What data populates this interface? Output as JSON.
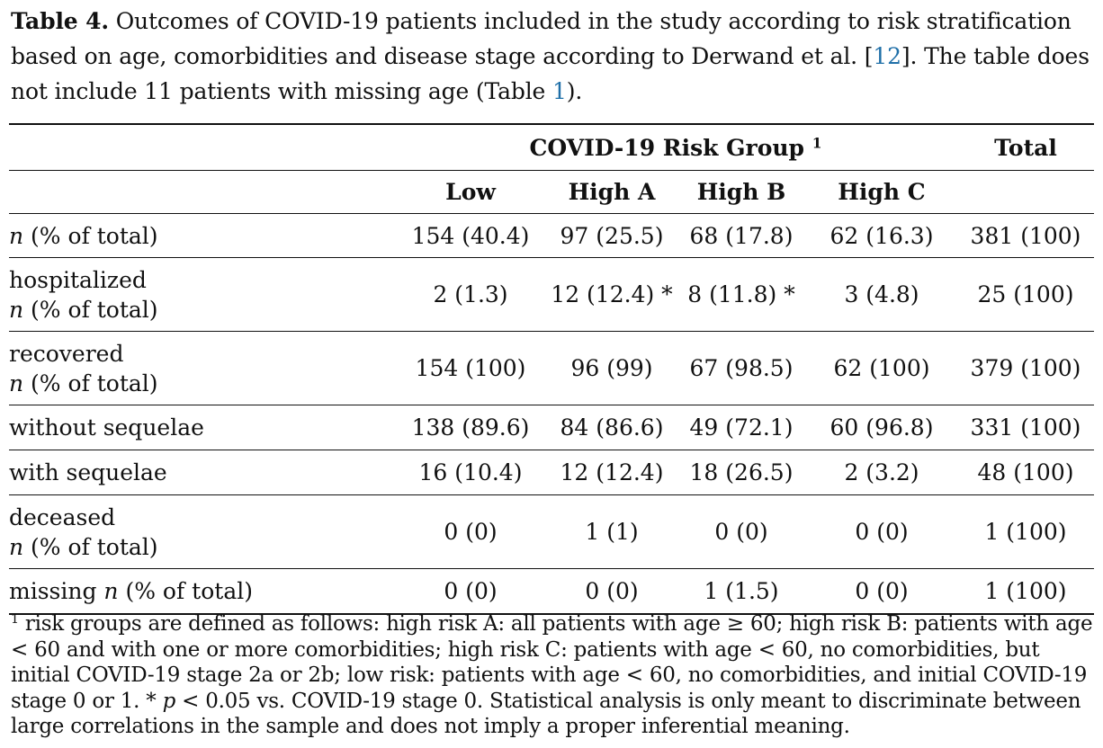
{
  "caption": {
    "label": "Table 4.",
    "text_before_ref": " Outcomes of COVID-19 patients included in the study according to risk stratification based on age, comorbidities and disease stage according to Derwand et al. [",
    "ref": "12",
    "text_after_ref": "]. The table does not include 11 patients with missing age (Table ",
    "table_ref": "1",
    "text_end": ")."
  },
  "table": {
    "group_header": "COVID-19 Risk Group",
    "group_footnote_mark": "1",
    "total_header": "Total",
    "columns": [
      "Low",
      "High A",
      "High B",
      "High C"
    ],
    "rows": [
      {
        "label_italic": "n",
        "label_rest": " (% of total)",
        "values": [
          "154 (40.4)",
          "97 (25.5)",
          "68 (17.8)",
          "62 (16.3)",
          "381 (100)"
        ]
      },
      {
        "label_line1": "hospitalized",
        "label_italic": "n",
        "label_rest": " (% of total)",
        "values": [
          "2 (1.3)",
          "12 (12.4) *",
          "8 (11.8) *",
          "3 (4.8)",
          "25 (100)"
        ]
      },
      {
        "label_line1": "recovered",
        "label_italic": "n",
        "label_rest": " (% of total)",
        "values": [
          "154 (100)",
          "96 (99)",
          "67 (98.5)",
          "62 (100)",
          "379 (100)"
        ]
      },
      {
        "label": "without sequelae",
        "values": [
          "138 (89.6)",
          "84 (86.6)",
          "49 (72.1)",
          "60 (96.8)",
          "331 (100)"
        ]
      },
      {
        "label": "with sequelae",
        "values": [
          "16 (10.4)",
          "12 (12.4)",
          "18 (26.5)",
          "2 (3.2)",
          "48 (100)"
        ]
      },
      {
        "label_line1": "deceased",
        "label_italic": "n",
        "label_rest": " (% of total)",
        "values": [
          "0 (0)",
          "1 (1)",
          "0 (0)",
          "0 (0)",
          "1 (100)"
        ]
      },
      {
        "label_prefix": "missing ",
        "label_italic": "n",
        "label_rest": " (% of total)",
        "values": [
          "0 (0)",
          "0 (0)",
          "1 (1.5)",
          "0 (0)",
          "1 (100)"
        ]
      }
    ]
  },
  "footnote": {
    "mark": "1",
    "text_a": " risk groups are defined as follows: high risk A: all patients with age ≥ 60; high risk B: patients with age < 60 and with one or more comorbidities; high risk C: patients with age < 60, no comorbidities, but initial COVID-19 stage 2a or 2b; low risk: patients with age < 60, no comorbidities, and initial COVID-19 stage 0 or 1. * ",
    "p_symbol": "p",
    "text_b": " < 0.05 vs. COVID-19 stage 0. Statistical analysis is only meant to discriminate between large correlations in the sample and does not imply a proper inferential meaning."
  }
}
